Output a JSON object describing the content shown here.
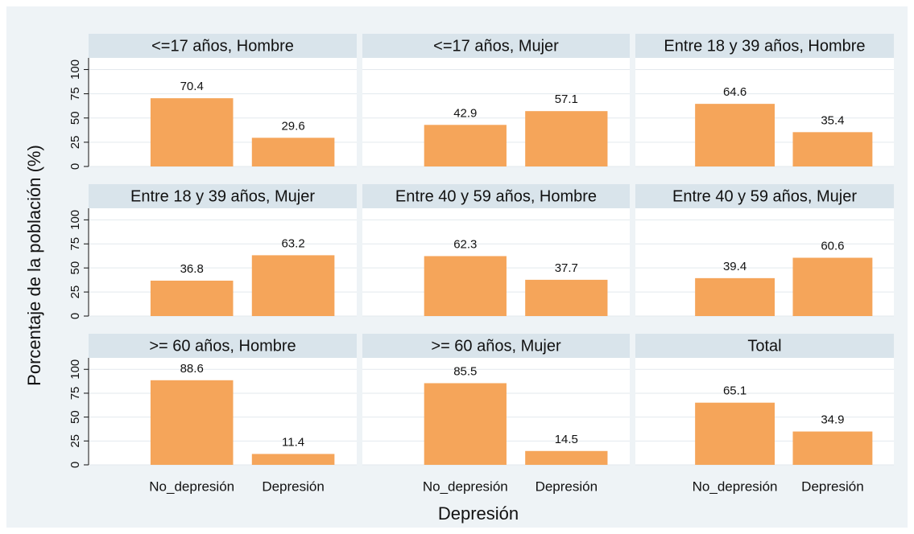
{
  "y_label": "Porcentaje de la población (%)",
  "x_label": "Depresión",
  "chart_data": [
    {
      "type": "bar",
      "title": "<=17 años, Hombre",
      "values": [
        70.4,
        29.6
      ],
      "color": "#f5a55a",
      "ylim": [
        0,
        112
      ],
      "yticks": [
        0,
        25,
        50,
        75,
        100
      ],
      "grid": true
    },
    {
      "type": "bar",
      "title": "<=17 años, Mujer",
      "values": [
        42.9,
        57.1
      ],
      "color": "#f5a55a",
      "ylim": [
        0,
        112
      ],
      "yticks": [
        0,
        25,
        50,
        75,
        100
      ],
      "grid": true
    },
    {
      "type": "bar",
      "title": "Entre 18 y 39 años, Hombre",
      "values": [
        64.6,
        35.4
      ],
      "color": "#f5a55a",
      "ylim": [
        0,
        112
      ],
      "yticks": [
        0,
        25,
        50,
        75,
        100
      ],
      "grid": true
    },
    {
      "type": "bar",
      "title": "Entre 18 y 39 años, Mujer",
      "values": [
        36.8,
        63.2
      ],
      "color": "#f5a55a",
      "ylim": [
        0,
        112
      ],
      "yticks": [
        0,
        25,
        50,
        75,
        100
      ],
      "grid": true
    },
    {
      "type": "bar",
      "title": "Entre 40 y 59 años, Hombre",
      "values": [
        62.3,
        37.7
      ],
      "color": "#f5a55a",
      "ylim": [
        0,
        112
      ],
      "yticks": [
        0,
        25,
        50,
        75,
        100
      ],
      "grid": true
    },
    {
      "type": "bar",
      "title": "Entre 40 y 59 años, Mujer",
      "values": [
        39.4,
        60.6
      ],
      "color": "#f5a55a",
      "ylim": [
        0,
        112
      ],
      "yticks": [
        0,
        25,
        50,
        75,
        100
      ],
      "grid": true
    },
    {
      "type": "bar",
      "title": ">= 60 años, Hombre",
      "categories": [
        "No_depresión",
        "Depresión"
      ],
      "values": [
        88.6,
        11.4
      ],
      "color": "#f5a55a",
      "ylim": [
        0,
        112
      ],
      "yticks": [
        0,
        25,
        50,
        75,
        100
      ],
      "grid": true
    },
    {
      "type": "bar",
      "title": ">= 60 años, Mujer",
      "categories": [
        "No_depresión",
        "Depresión"
      ],
      "values": [
        85.5,
        14.5
      ],
      "color": "#f5a55a",
      "ylim": [
        0,
        112
      ],
      "yticks": [
        0,
        25,
        50,
        75,
        100
      ],
      "grid": true
    },
    {
      "type": "bar",
      "title": "Total",
      "categories": [
        "No_depresión",
        "Depresión"
      ],
      "values": [
        65.1,
        34.9
      ],
      "color": "#f5a55a",
      "ylim": [
        0,
        112
      ],
      "yticks": [
        0,
        25,
        50,
        75,
        100
      ],
      "grid": true
    }
  ]
}
